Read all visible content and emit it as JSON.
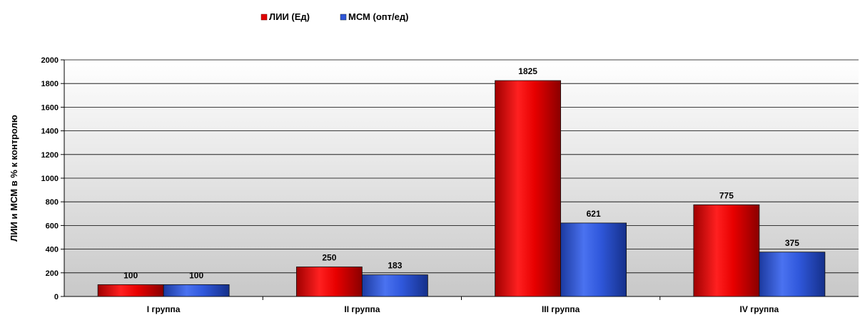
{
  "chart_data": {
    "type": "bar",
    "categories": [
      "I группа",
      "II группа",
      "III группа",
      "IV группа"
    ],
    "series": [
      {
        "name": "ЛИИ (Ед)",
        "values": [
          100,
          250,
          1825,
          775
        ],
        "color": "#e00000"
      },
      {
        "name": "МСМ (опт/ед)",
        "values": [
          100,
          183,
          621,
          375
        ],
        "color": "#2f56d8"
      }
    ],
    "ylabel": "ЛИИ и МСМ в % к контролю",
    "xlabel": "",
    "ylim": [
      0,
      2000
    ],
    "yticks": [
      0,
      200,
      400,
      600,
      800,
      1000,
      1200,
      1400,
      1600,
      1800,
      2000
    ],
    "grid": true,
    "legend_position": "top-center"
  }
}
